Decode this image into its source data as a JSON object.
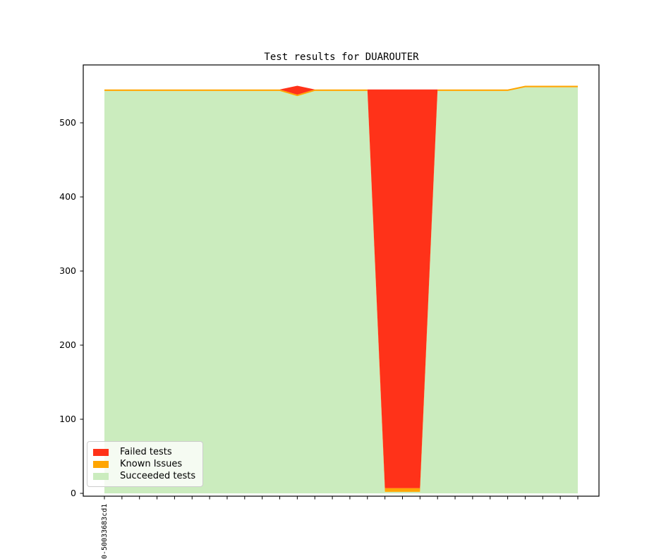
{
  "title": "Test results for DUAROUTER",
  "legend": {
    "items": [
      {
        "label": "Failed tests",
        "color": "#ff3219"
      },
      {
        "label": "Known Issues",
        "color": "#ffa500"
      },
      {
        "label": "Succeeded tests",
        "color": "#cbecbe"
      }
    ]
  },
  "chart_data": {
    "type": "area",
    "stacked": true,
    "title": "Test results for DUAROUTER",
    "xlabel": "",
    "ylabel": "",
    "grid": false,
    "legend_position": "lower left",
    "ylim": [
      0,
      580
    ],
    "yticks": [
      0,
      100,
      200,
      300,
      400,
      500
    ],
    "n_points": 28,
    "x_tick_labels_visible": [
      "0-50033683cd1"
    ],
    "series": [
      {
        "name": "Succeeded tests",
        "color": "#cbecbe",
        "values": [
          543,
          543,
          543,
          543,
          543,
          543,
          543,
          543,
          543,
          543,
          543,
          536,
          543,
          543,
          543,
          543,
          2,
          2,
          2,
          543,
          543,
          543,
          543,
          543,
          548,
          548,
          548,
          548
        ]
      },
      {
        "name": "Known Issues",
        "color": "#ffa500",
        "values": [
          2,
          2,
          2,
          2,
          2,
          2,
          2,
          2,
          2,
          2,
          2,
          2,
          2,
          2,
          2,
          2,
          5,
          5,
          5,
          2,
          2,
          2,
          2,
          2,
          2,
          2,
          2,
          2
        ]
      },
      {
        "name": "Failed tests",
        "color": "#ff3219",
        "values": [
          0,
          0,
          0,
          0,
          0,
          0,
          0,
          0,
          0,
          0,
          0,
          12,
          0,
          0,
          0,
          0,
          538,
          538,
          538,
          0,
          0,
          0,
          0,
          0,
          0,
          0,
          0,
          0
        ]
      }
    ],
    "colors": {
      "failed": "#ff3219",
      "known_issues": "#ffa500",
      "succeeded": "#cbecbe",
      "axis": "#000000",
      "background": "#ffffff"
    }
  }
}
